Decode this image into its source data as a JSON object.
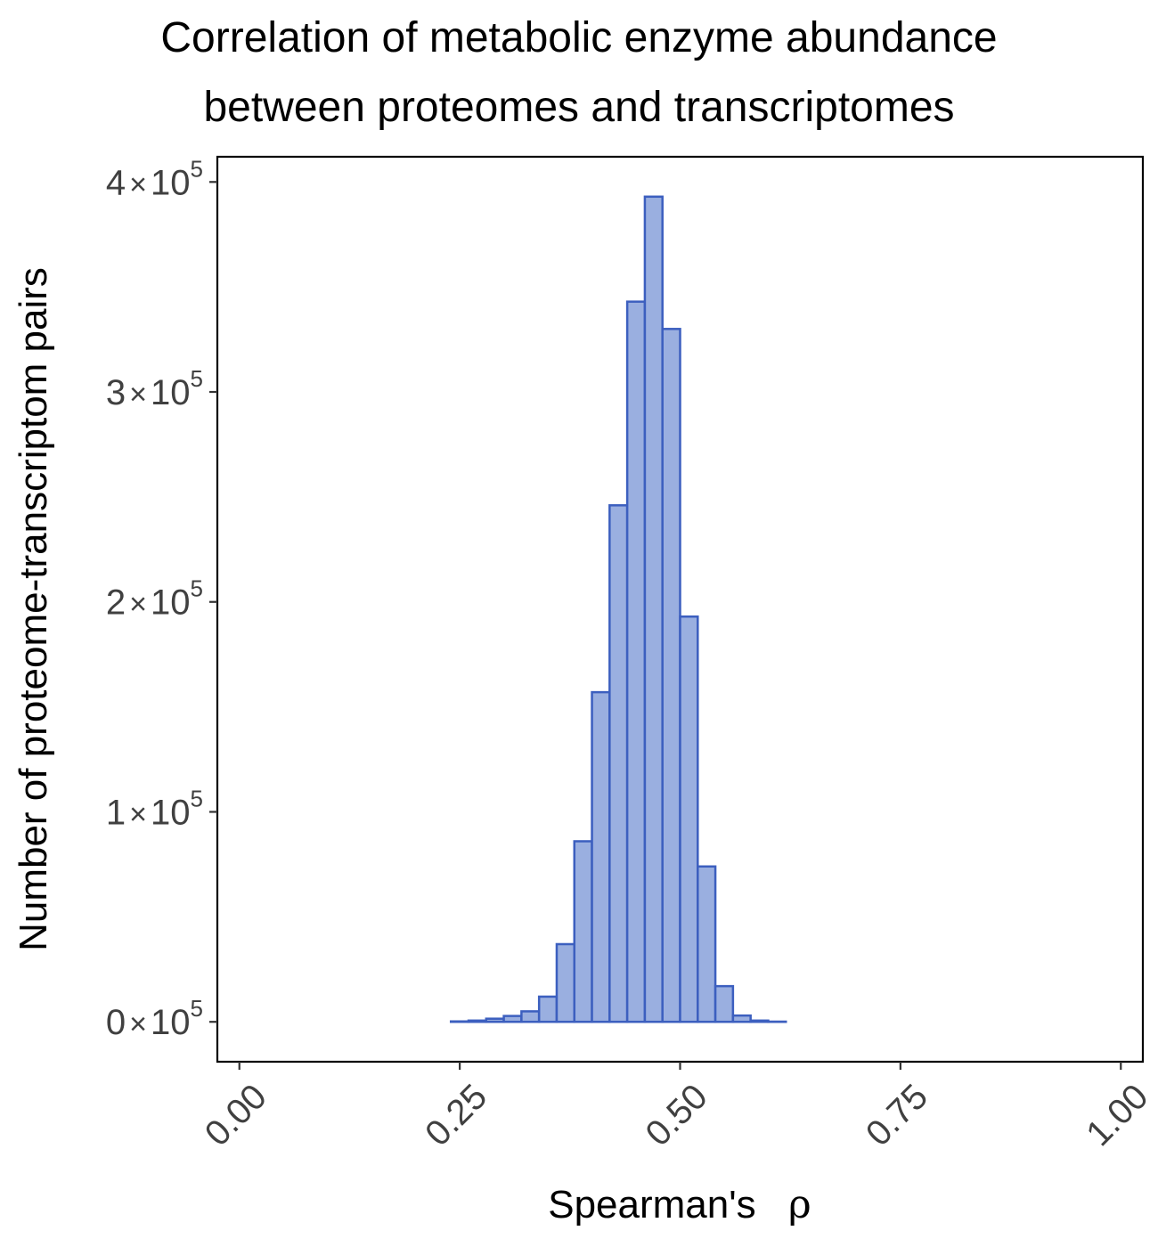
{
  "chart_data": {
    "type": "bar",
    "title_lines": [
      "Correlation of metabolic enzyme abundance",
      "between proteomes and transcriptomes"
    ],
    "xlabel": "Spearman's",
    "xlabel_symbol": "ρ",
    "ylabel": "Number of proteome-transcriptom pairs",
    "xlim": [
      -0.025,
      1.025
    ],
    "ylim": [
      -19000,
      412000
    ],
    "x_ticks": [
      0,
      0.25,
      0.5,
      0.75,
      1
    ],
    "x_tick_labels": [
      "0.00",
      "0.25",
      "0.50",
      "0.75",
      "1.00"
    ],
    "y_ticks": [
      0,
      100000,
      200000,
      300000,
      400000
    ],
    "y_tick_labels": [
      {
        "mantissa": "0",
        "times": "×",
        "base": "10",
        "exp": "5"
      },
      {
        "mantissa": "1",
        "times": "×",
        "base": "10",
        "exp": "5"
      },
      {
        "mantissa": "2",
        "times": "×",
        "base": "10",
        "exp": "5"
      },
      {
        "mantissa": "3",
        "times": "×",
        "base": "10",
        "exp": "5"
      },
      {
        "mantissa": "4",
        "times": "×",
        "base": "10",
        "exp": "5"
      }
    ],
    "bin_width": 0.02,
    "bin_centers": [
      0.01,
      0.03,
      0.05,
      0.07,
      0.09,
      0.11,
      0.13,
      0.15,
      0.17,
      0.19,
      0.21,
      0.23,
      0.25,
      0.27,
      0.29,
      0.31,
      0.33,
      0.35,
      0.37,
      0.39,
      0.41,
      0.43,
      0.45,
      0.47,
      0.49,
      0.51,
      0.53,
      0.55,
      0.57,
      0.59,
      0.61,
      0.63,
      0.65,
      0.67,
      0.69,
      0.71,
      0.73,
      0.75,
      0.77,
      0.79,
      0.81,
      0.83,
      0.85,
      0.87,
      0.89,
      0.91,
      0.93,
      0.95,
      0.97,
      0.99
    ],
    "values": [
      0,
      0,
      0,
      0,
      0,
      0,
      0,
      0,
      0,
      0,
      0,
      0,
      200,
      600,
      1500,
      2800,
      5000,
      12000,
      37000,
      86000,
      157000,
      246000,
      343000,
      393000,
      330000,
      193000,
      74000,
      17000,
      3000,
      600,
      100,
      0,
      0,
      0,
      0,
      0,
      0,
      0,
      0,
      0,
      0,
      0,
      0,
      0,
      0,
      0,
      0,
      0,
      0,
      0
    ],
    "bar_fill": "#9aafe0",
    "bar_stroke": "#3c5fbf",
    "grid": false,
    "legend": "none"
  }
}
